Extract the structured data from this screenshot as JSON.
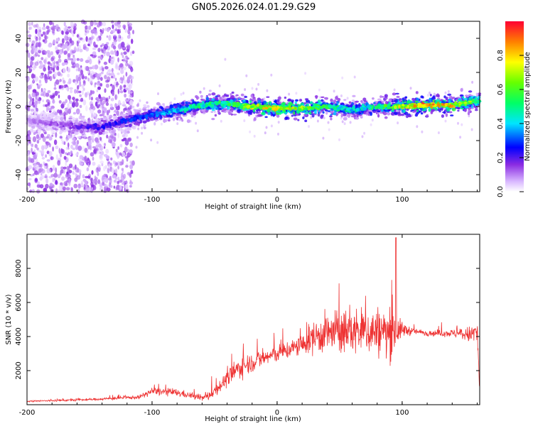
{
  "chart_data": [
    {
      "type": "heatmap",
      "title": "GN05.2026.024.01.29.G29",
      "xlabel": "Height of straight line (km)",
      "ylabel": "Frequency (Hz)",
      "xlim": [
        -200,
        162
      ],
      "ylim": [
        -50,
        50
      ],
      "x_ticks": [
        -200,
        -100,
        0,
        100
      ],
      "y_ticks": [
        -40,
        -20,
        0,
        20,
        40
      ],
      "colorbar": {
        "label": "Normalized spectral amplitude",
        "range": [
          0,
          1
        ],
        "ticks": [
          0.0,
          0.2,
          0.4,
          0.6,
          0.8
        ]
      },
      "ridge": {
        "description_points_x": [
          -200,
          -180,
          -160,
          -140,
          -120,
          -100,
          -80,
          -60,
          -40,
          -20,
          0,
          20,
          40,
          60,
          80,
          100,
          120,
          140,
          160
        ],
        "frequency": [
          -8,
          -10,
          -12,
          -12,
          -8,
          -5,
          -2,
          1,
          2,
          0,
          -1,
          -1,
          0,
          -2,
          0,
          0,
          1,
          1,
          3
        ],
        "peak_amplitude": [
          0.1,
          0.15,
          0.2,
          0.25,
          0.3,
          0.35,
          0.45,
          0.55,
          0.6,
          0.75,
          0.85,
          0.8,
          0.6,
          0.5,
          0.55,
          0.8,
          0.95,
          0.9,
          0.6
        ]
      }
    },
    {
      "type": "line",
      "xlabel": "Height of straight line (km)",
      "ylabel": "SNR (10 * v/v)",
      "xlim": [
        -200,
        162
      ],
      "ylim": [
        0,
        10000
      ],
      "x_ticks": [
        -200,
        -100,
        0,
        100
      ],
      "y_ticks": [
        2000,
        4000,
        6000,
        8000
      ],
      "series": [
        {
          "name": "SNR",
          "color": "#ee3333",
          "envelope": {
            "x": [
              -200,
              -150,
              -110,
              -100,
              -80,
              -60,
              -55,
              -40,
              -30,
              -20,
              0,
              20,
              30,
              40,
              60,
              80,
              90,
              100,
              110,
              120,
              140,
              155,
              160,
              162
            ],
            "mean": [
              200,
              300,
              450,
              800,
              700,
              400,
              500,
              1500,
              2200,
              2500,
              3000,
              3500,
              4000,
              4200,
              4300,
              4300,
              4200,
              4400,
              4300,
              4200,
              4200,
              4100,
              4300,
              800
            ],
            "spread": [
              100,
              120,
              200,
              400,
              400,
              300,
              500,
              800,
              1200,
              1000,
              900,
              1100,
              1800,
              2200,
              2400,
              2600,
              2800,
              800,
              300,
              300,
              400,
              900,
              1800,
              600
            ],
            "peak": {
              "x": 95,
              "y": 9800
            }
          }
        }
      ]
    }
  ]
}
